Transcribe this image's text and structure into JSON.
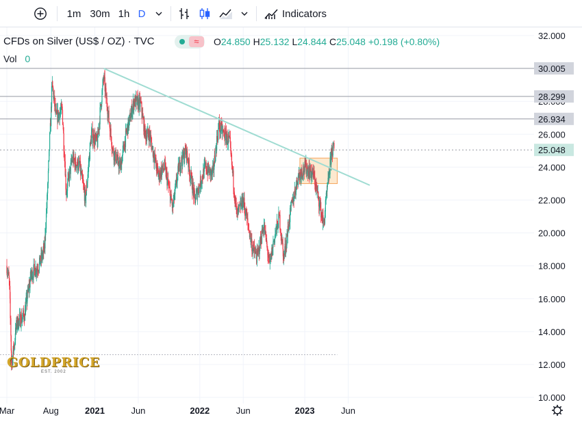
{
  "toolbar": {
    "add_symbol_icon": "plus-circle-icon",
    "intervals": [
      "1m",
      "30m",
      "1h",
      "D"
    ],
    "active_interval": "D",
    "interval_menu_icon": "chevron-down-icon",
    "chart_types": [
      "bar-chart-icon",
      "candle-chart-icon",
      "area-chart-icon"
    ],
    "chart_type_menu_icon": "chevron-down-icon",
    "indicators_label": "Indicators"
  },
  "legend": {
    "symbol": "CFDs on Silver (US$ / OZ) · TVC",
    "open_label": "O",
    "open": "24.850",
    "high_label": "H",
    "high": "25.132",
    "low_label": "L",
    "low": "24.844",
    "close_label": "C",
    "close": "25.048",
    "change": "+0.198 (+0.80%)",
    "vol_label": "Vol",
    "vol_value": "0"
  },
  "colors": {
    "up": "#22ab94",
    "down": "#f23645",
    "trendline": "#9fdcd2",
    "box_fill": "#fde4c3",
    "box_border": "#f5a35a",
    "accent": "#2962ff"
  },
  "logo": {
    "text": "GOLDPRICE",
    "subtitle": "EST. 2002"
  },
  "chart_data": {
    "type": "candlestick",
    "title": "CFDs on Silver (US$ / OZ) · TVC",
    "ylim": [
      10,
      32
    ],
    "y_ticks": [
      "32.000",
      "30.000",
      "28.000",
      "26.000",
      "24.000",
      "22.000",
      "20.000",
      "18.000",
      "16.000",
      "14.000",
      "12.000",
      "10.000"
    ],
    "x_ticks": [
      {
        "label": "Mar",
        "date": "2020-03"
      },
      {
        "label": "Aug",
        "date": "2020-08"
      },
      {
        "label": "2021",
        "date": "2021-01",
        "bold": true
      },
      {
        "label": "Jun",
        "date": "2021-06"
      },
      {
        "label": "2022",
        "date": "2022-01",
        "bold": true
      },
      {
        "label": "Jun",
        "date": "2022-06"
      },
      {
        "label": "2023",
        "date": "2023-01",
        "bold": true
      },
      {
        "label": "Jun",
        "date": "2023-06"
      }
    ],
    "price_path": [
      [
        "2020-03-01",
        18.0
      ],
      [
        "2020-03-10",
        17.0
      ],
      [
        "2020-03-18",
        12.0
      ],
      [
        "2020-04-05",
        14.5
      ],
      [
        "2020-05-01",
        15.0
      ],
      [
        "2020-05-25",
        17.5
      ],
      [
        "2020-06-20",
        18.0
      ],
      [
        "2020-07-10",
        19.0
      ],
      [
        "2020-07-22",
        23.0
      ],
      [
        "2020-08-06",
        29.0
      ],
      [
        "2020-08-20",
        27.0
      ],
      [
        "2020-09-10",
        27.5
      ],
      [
        "2020-09-24",
        22.5
      ],
      [
        "2020-10-15",
        24.5
      ],
      [
        "2020-11-10",
        24.0
      ],
      [
        "2020-11-30",
        22.0
      ],
      [
        "2020-12-20",
        26.0
      ],
      [
        "2021-01-10",
        25.5
      ],
      [
        "2021-02-01",
        29.5
      ],
      [
        "2021-02-15",
        27.5
      ],
      [
        "2021-03-05",
        25.0
      ],
      [
        "2021-03-31",
        24.0
      ],
      [
        "2021-04-20",
        26.0
      ],
      [
        "2021-05-18",
        28.0
      ],
      [
        "2021-06-10",
        27.8
      ],
      [
        "2021-06-25",
        26.0
      ],
      [
        "2021-07-10",
        26.0
      ],
      [
        "2021-08-10",
        23.5
      ],
      [
        "2021-09-01",
        24.0
      ],
      [
        "2021-09-29",
        21.5
      ],
      [
        "2021-10-20",
        24.0
      ],
      [
        "2021-11-15",
        25.0
      ],
      [
        "2021-12-15",
        22.0
      ],
      [
        "2022-01-20",
        24.0
      ],
      [
        "2022-02-15",
        23.5
      ],
      [
        "2022-03-08",
        26.5
      ],
      [
        "2022-04-15",
        25.5
      ],
      [
        "2022-05-10",
        21.0
      ],
      [
        "2022-06-01",
        22.0
      ],
      [
        "2022-07-05",
        19.0
      ],
      [
        "2022-07-20",
        18.5
      ],
      [
        "2022-08-12",
        20.5
      ],
      [
        "2022-09-01",
        18.0
      ],
      [
        "2022-09-15",
        19.5
      ],
      [
        "2022-10-05",
        21.0
      ],
      [
        "2022-10-20",
        18.5
      ],
      [
        "2022-11-15",
        21.5
      ],
      [
        "2022-12-10",
        23.5
      ],
      [
        "2023-01-05",
        24.0
      ],
      [
        "2023-02-01",
        23.5
      ],
      [
        "2023-03-08",
        20.5
      ],
      [
        "2023-03-20",
        22.5
      ],
      [
        "2023-04-05",
        25.0
      ],
      [
        "2023-04-14",
        25.1
      ]
    ],
    "horizontal_levels": [
      {
        "value": 30.005,
        "label": "30.005"
      },
      {
        "value": 28.299,
        "label": "28.299"
      },
      {
        "value": 26.934,
        "label": "26.934"
      }
    ],
    "last_price": {
      "value": 25.048,
      "label": "25.048"
    },
    "dotted_support": 12.6,
    "trendline": {
      "from": [
        "2021-02-01",
        30.0
      ],
      "to": [
        "2023-08-15",
        22.9
      ]
    },
    "range_box": {
      "x0": "2022-12-15",
      "x1": "2023-04-24",
      "y0": 23.0,
      "y1": 24.55
    }
  }
}
